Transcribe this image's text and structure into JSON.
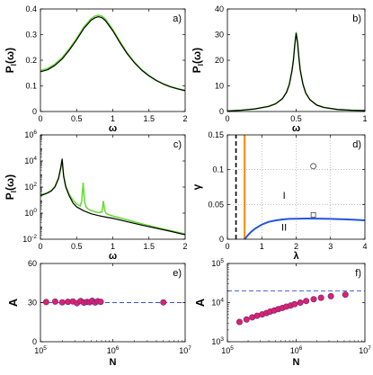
{
  "chart_data": [
    {
      "panel": "a)",
      "type": "line",
      "ylabel": "P_l(ω)",
      "xlabel": "ω",
      "xlim": [
        0,
        2
      ],
      "ylim": [
        0,
        0.4
      ],
      "xticks": [
        0,
        0.5,
        1,
        1.5,
        2
      ],
      "xticklabels": [
        "0",
        "0.5",
        "1",
        "1.5",
        "2"
      ],
      "yticks": [
        0,
        0.1,
        0.2,
        0.3,
        0.4
      ],
      "yticklabels": [
        "0",
        "0.1",
        "0.2",
        "0.3",
        "0.4"
      ],
      "series": [
        {
          "color": "#66dd33",
          "style": "noisy",
          "x": [
            0,
            0.1,
            0.2,
            0.3,
            0.4,
            0.5,
            0.6,
            0.7,
            0.75,
            0.8,
            0.85,
            0.9,
            1.0,
            1.1,
            1.2,
            1.3,
            1.4,
            1.5,
            1.6,
            1.7,
            1.8,
            1.9,
            2.0
          ],
          "y": [
            0.16,
            0.168,
            0.185,
            0.21,
            0.245,
            0.285,
            0.33,
            0.362,
            0.372,
            0.376,
            0.372,
            0.36,
            0.32,
            0.272,
            0.228,
            0.192,
            0.163,
            0.14,
            0.122,
            0.108,
            0.097,
            0.089,
            0.082
          ]
        },
        {
          "color": "#000000",
          "style": "solid",
          "x": [
            0,
            0.1,
            0.2,
            0.3,
            0.4,
            0.5,
            0.6,
            0.7,
            0.75,
            0.8,
            0.85,
            0.9,
            1.0,
            1.1,
            1.2,
            1.3,
            1.4,
            1.5,
            1.6,
            1.7,
            1.8,
            1.9,
            2.0
          ],
          "y": [
            0.155,
            0.163,
            0.18,
            0.205,
            0.24,
            0.28,
            0.324,
            0.356,
            0.365,
            0.37,
            0.366,
            0.354,
            0.315,
            0.268,
            0.225,
            0.19,
            0.161,
            0.139,
            0.121,
            0.107,
            0.096,
            0.088,
            0.081
          ]
        }
      ]
    },
    {
      "panel": "b)",
      "type": "line",
      "ylabel": "P_l(ω)",
      "xlabel": "ω",
      "xlim": [
        0,
        1
      ],
      "ylim": [
        0,
        40
      ],
      "xticks": [
        0,
        0.5,
        1
      ],
      "xticklabels": [
        "0",
        "0.5",
        "1"
      ],
      "yticks": [
        0,
        10,
        20,
        30,
        40
      ],
      "yticklabels": [
        "0",
        "10",
        "20",
        "30",
        "40"
      ],
      "series": [
        {
          "color": "#66dd33",
          "style": "solid",
          "x": [
            0,
            0.1,
            0.2,
            0.3,
            0.35,
            0.4,
            0.43,
            0.45,
            0.47,
            0.48,
            0.49,
            0.5,
            0.51,
            0.52,
            0.53,
            0.55,
            0.57,
            0.6,
            0.65,
            0.7,
            0.8,
            0.9,
            1.0
          ],
          "y": [
            0.2,
            0.5,
            1.0,
            2.0,
            3.0,
            5.0,
            7.5,
            10.5,
            16,
            20,
            26,
            30.8,
            27,
            21,
            16,
            10.5,
            7.2,
            4.6,
            2.5,
            1.6,
            0.8,
            0.5,
            0.35
          ]
        },
        {
          "color": "#000000",
          "style": "solid",
          "x": [
            0,
            0.1,
            0.2,
            0.3,
            0.35,
            0.4,
            0.43,
            0.45,
            0.47,
            0.48,
            0.49,
            0.5,
            0.51,
            0.52,
            0.53,
            0.55,
            0.57,
            0.6,
            0.65,
            0.7,
            0.8,
            0.9,
            1.0
          ],
          "y": [
            0.2,
            0.5,
            1.0,
            2.0,
            3.0,
            5.0,
            7.5,
            10.5,
            16,
            20,
            26,
            30.5,
            27,
            21,
            16,
            10.5,
            7.2,
            4.6,
            2.5,
            1.6,
            0.8,
            0.5,
            0.35
          ]
        }
      ]
    },
    {
      "panel": "c)",
      "type": "line",
      "ylabel": "P_l(ω)",
      "xlabel": "ω",
      "xlim": [
        0,
        2
      ],
      "yscale": "log",
      "ylim": [
        0.01,
        1000000
      ],
      "xticks": [
        0,
        0.5,
        1,
        1.5,
        2
      ],
      "xticklabels": [
        "0",
        "0.5",
        "1",
        "1.5",
        "2"
      ],
      "yticks": [
        0.01,
        1,
        100,
        10000,
        1000000
      ],
      "yticklabels": [
        "10^-2",
        "10^0",
        "10^2",
        "10^4",
        "10^6"
      ],
      "series": [
        {
          "color": "#66dd33",
          "style": "solid",
          "x": [
            0,
            0.05,
            0.1,
            0.15,
            0.2,
            0.25,
            0.28,
            0.3,
            0.32,
            0.35,
            0.4,
            0.45,
            0.5,
            0.55,
            0.57,
            0.59,
            0.61,
            0.63,
            0.66,
            0.7,
            0.75,
            0.8,
            0.85,
            0.87,
            0.89,
            0.91,
            0.95,
            1.0,
            1.2,
            1.4,
            1.6,
            1.8,
            2.0
          ],
          "y": [
            25,
            30,
            38,
            55,
            110,
            500,
            3000,
            12000,
            800,
            120,
            25,
            10,
            5,
            3.5,
            8,
            200,
            8,
            3,
            2,
            1.6,
            1.3,
            1.1,
            1.2,
            8,
            1.5,
            0.9,
            0.75,
            0.6,
            0.3,
            0.15,
            0.08,
            0.045,
            0.025
          ]
        },
        {
          "color": "#000000",
          "style": "solid",
          "x": [
            0,
            0.05,
            0.1,
            0.15,
            0.2,
            0.25,
            0.28,
            0.3,
            0.32,
            0.35,
            0.4,
            0.45,
            0.5,
            0.6,
            0.7,
            0.8,
            0.9,
            1.0,
            1.2,
            1.4,
            1.6,
            1.8,
            2.0
          ],
          "y": [
            22,
            27,
            35,
            50,
            100,
            450,
            2800,
            14000,
            700,
            100,
            20,
            6,
            3,
            1.5,
            0.9,
            0.65,
            0.5,
            0.4,
            0.22,
            0.12,
            0.07,
            0.04,
            0.022
          ]
        }
      ]
    },
    {
      "panel": "d)",
      "type": "line",
      "ylabel": "γ",
      "xlabel": "λ",
      "xlim": [
        0,
        4
      ],
      "ylim": [
        0,
        0.15
      ],
      "grid": "dotted",
      "xticks": [
        0,
        1,
        2,
        3,
        4
      ],
      "xticklabels": [
        "0",
        "1",
        "2",
        "3",
        "4"
      ],
      "yticks": [
        0,
        0.05,
        0.1,
        0.15
      ],
      "yticklabels": [
        "0",
        "0.05",
        "0.1",
        "0.15"
      ],
      "regions": [
        {
          "label": "I",
          "x": 1.65,
          "y": 0.058
        },
        {
          "label": "II",
          "x": 1.65,
          "y": 0.012
        }
      ],
      "markers": [
        {
          "shape": "circle",
          "x": 2.5,
          "y": 0.105
        },
        {
          "shape": "square",
          "x": 2.5,
          "y": 0.035
        }
      ],
      "lines": [
        {
          "color": "#000000",
          "style": "dashed",
          "x": [
            0.25,
            0.25
          ],
          "y": [
            0,
            0.15
          ]
        },
        {
          "color": "#ff8800",
          "style": "solid",
          "x": [
            0.5,
            0.5
          ],
          "y": [
            0,
            0.15
          ]
        },
        {
          "color": "#2255dd",
          "style": "solid",
          "x": [
            0.5,
            0.6,
            0.7,
            0.8,
            0.9,
            1.0,
            1.2,
            1.4,
            1.6,
            1.8,
            2.0,
            2.3,
            2.6,
            3.0,
            3.4,
            3.7,
            4.0
          ],
          "y": [
            0,
            0.006,
            0.011,
            0.015,
            0.018,
            0.021,
            0.025,
            0.027,
            0.0285,
            0.0292,
            0.0295,
            0.0297,
            0.0296,
            0.0293,
            0.0286,
            0.0279,
            0.0272
          ]
        }
      ]
    },
    {
      "panel": "e)",
      "type": "scatter",
      "ylabel": "A",
      "xlabel": "N",
      "xscale": "log",
      "xlim": [
        100000,
        10000000
      ],
      "ylim": [
        0,
        60
      ],
      "xticks": [
        100000,
        1000000,
        10000000
      ],
      "xticklabels": [
        "10^5",
        "10^6",
        "10^7"
      ],
      "yticks": [
        0,
        30,
        60
      ],
      "yticklabels": [
        "0",
        "30",
        "60"
      ],
      "reference": {
        "color": "#3355cc",
        "style": "dashed",
        "y": 30
      },
      "points": {
        "color": "#e0206a",
        "x": [
          120000,
          160000,
          200000,
          240000,
          280000,
          320000,
          360000,
          400000,
          440000,
          480000,
          520000,
          570000,
          620000,
          680000,
          5000000
        ],
        "y": [
          30.4,
          30.8,
          30.2,
          30.6,
          30.9,
          29.6,
          31.2,
          30.0,
          30.5,
          30.3,
          31.4,
          30.1,
          31.0,
          30.6,
          30.2
        ]
      }
    },
    {
      "panel": "f)",
      "type": "scatter",
      "ylabel": "A",
      "xlabel": "N",
      "xscale": "log",
      "yscale": "log",
      "xlim": [
        100000,
        10000000
      ],
      "ylim": [
        1000,
        100000
      ],
      "xticks": [
        100000,
        1000000,
        10000000
      ],
      "xticklabels": [
        "10^5",
        "10^6",
        "10^7"
      ],
      "yticks": [
        1000,
        10000,
        100000
      ],
      "yticklabels": [
        "10^3",
        "10^4",
        "10^5"
      ],
      "reference": {
        "color": "#3355cc",
        "style": "dashed",
        "y": 20000
      },
      "points": {
        "color": "#e0206a",
        "x": [
          150000,
          190000,
          230000,
          270000,
          320000,
          370000,
          420000,
          480000,
          550000,
          630000,
          720000,
          830000,
          950000,
          1150000,
          1400000,
          1800000,
          2300000,
          3200000,
          5200000
        ],
        "y": [
          3200,
          3700,
          4200,
          4600,
          5000,
          5400,
          5900,
          6300,
          6800,
          7300,
          7900,
          8400,
          9100,
          10000,
          11000,
          12200,
          13300,
          14600,
          16000
        ]
      }
    }
  ]
}
